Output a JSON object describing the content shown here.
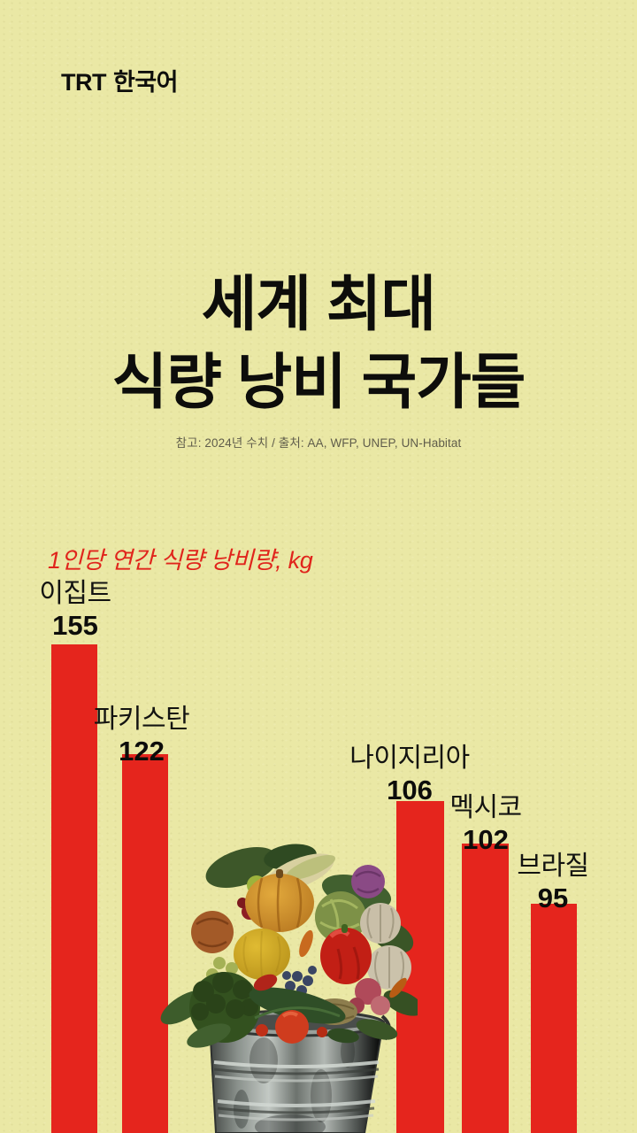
{
  "page": {
    "background_color": "#eae8a5",
    "accent_red": "#e5251d",
    "text_color": "#121210"
  },
  "brand": {
    "logo_trt": "TRT",
    "logo_lang": "한국어"
  },
  "header": {
    "title_line1": "세계 최대",
    "title_line2": "식량 낭비 국가들",
    "source_note": "참고: 2024년 수치 / 출처: AA, WFP, UNEP, UN-Habitat"
  },
  "chart_data": {
    "type": "bar",
    "orientation": "vertical",
    "title": "세계 최대 식량 낭비 국가들",
    "subtitle": "1인당 연간 식량 낭비량, kg",
    "unit": "kg",
    "categories": [
      "이집트",
      "파키스탄",
      "나이지리아",
      "멕시코",
      "브라질"
    ],
    "values": [
      155,
      122,
      106,
      102,
      95
    ],
    "value_labels_shown": true,
    "axis_shown": false,
    "grid": false,
    "legend": "none",
    "bar_color": "#e5251d",
    "baseline": "bars run off the bottom edge of the image",
    "source": "참고: 2024년 수치 / 출처: AA, WFP, UNEP, UN-Habitat"
  },
  "illustration": {
    "name": "metal-trash-can-overflowing-with-vegetables"
  }
}
